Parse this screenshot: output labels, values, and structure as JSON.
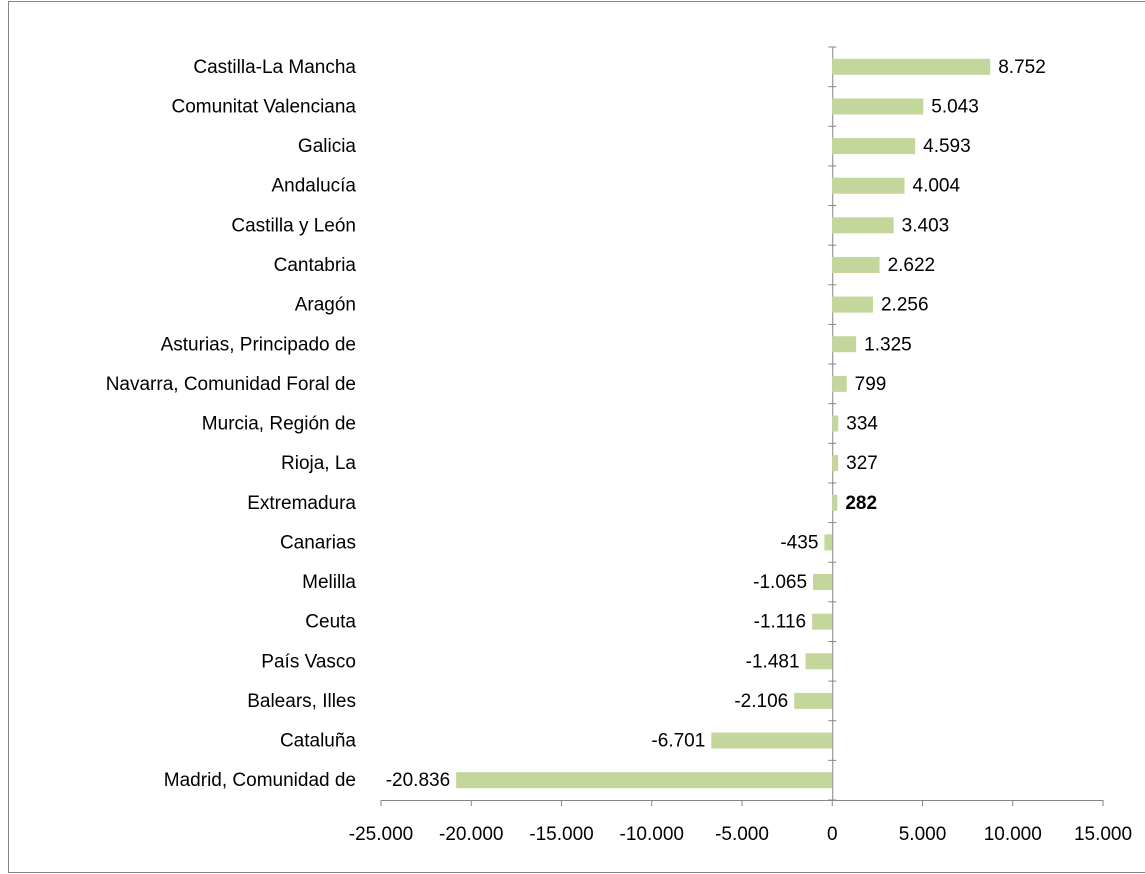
{
  "chart_data": {
    "type": "barh",
    "categories": [
      "Castilla-La Mancha",
      "Comunitat Valenciana",
      "Galicia",
      "Andalucía",
      "Castilla y León",
      "Cantabria",
      "Aragón",
      "Asturias, Principado de",
      "Navarra, Comunidad Foral de",
      "Murcia, Región de",
      "Rioja, La",
      "Extremadura",
      "Canarias",
      "Melilla",
      "Ceuta",
      "País Vasco",
      "Balears, Illes",
      "Cataluña",
      "Madrid, Comunidad de"
    ],
    "values": [
      8752,
      5043,
      4593,
      4004,
      3403,
      2622,
      2256,
      1325,
      799,
      334,
      327,
      282,
      -435,
      -1065,
      -1116,
      -1481,
      -2106,
      -6701,
      -20836
    ],
    "value_labels": [
      "8.752",
      "5.043",
      "4.593",
      "4.004",
      "3.403",
      "2.622",
      "2.256",
      "1.325",
      "799",
      "334",
      "327",
      "282",
      "-435",
      "-1.065",
      "-1.116",
      "-1.481",
      "-2.106",
      "-6.701",
      "-20.836"
    ],
    "bold_value_labels": [
      11
    ],
    "color": "#c3d69b",
    "xlim": [
      -25000,
      15000
    ],
    "xticks": [
      {
        "value": -25000,
        "label": "-25.000"
      },
      {
        "value": -20000,
        "label": "-20.000"
      },
      {
        "value": -15000,
        "label": "-15.000"
      },
      {
        "value": -10000,
        "label": "-10.000"
      },
      {
        "value": -5000,
        "label": "-5.000"
      },
      0,
      {
        "value": 5000,
        "label": "5.000"
      },
      {
        "value": 10000,
        "label": "10.000"
      },
      {
        "value": 15000,
        "label": "15.000"
      }
    ],
    "grid": false
  }
}
